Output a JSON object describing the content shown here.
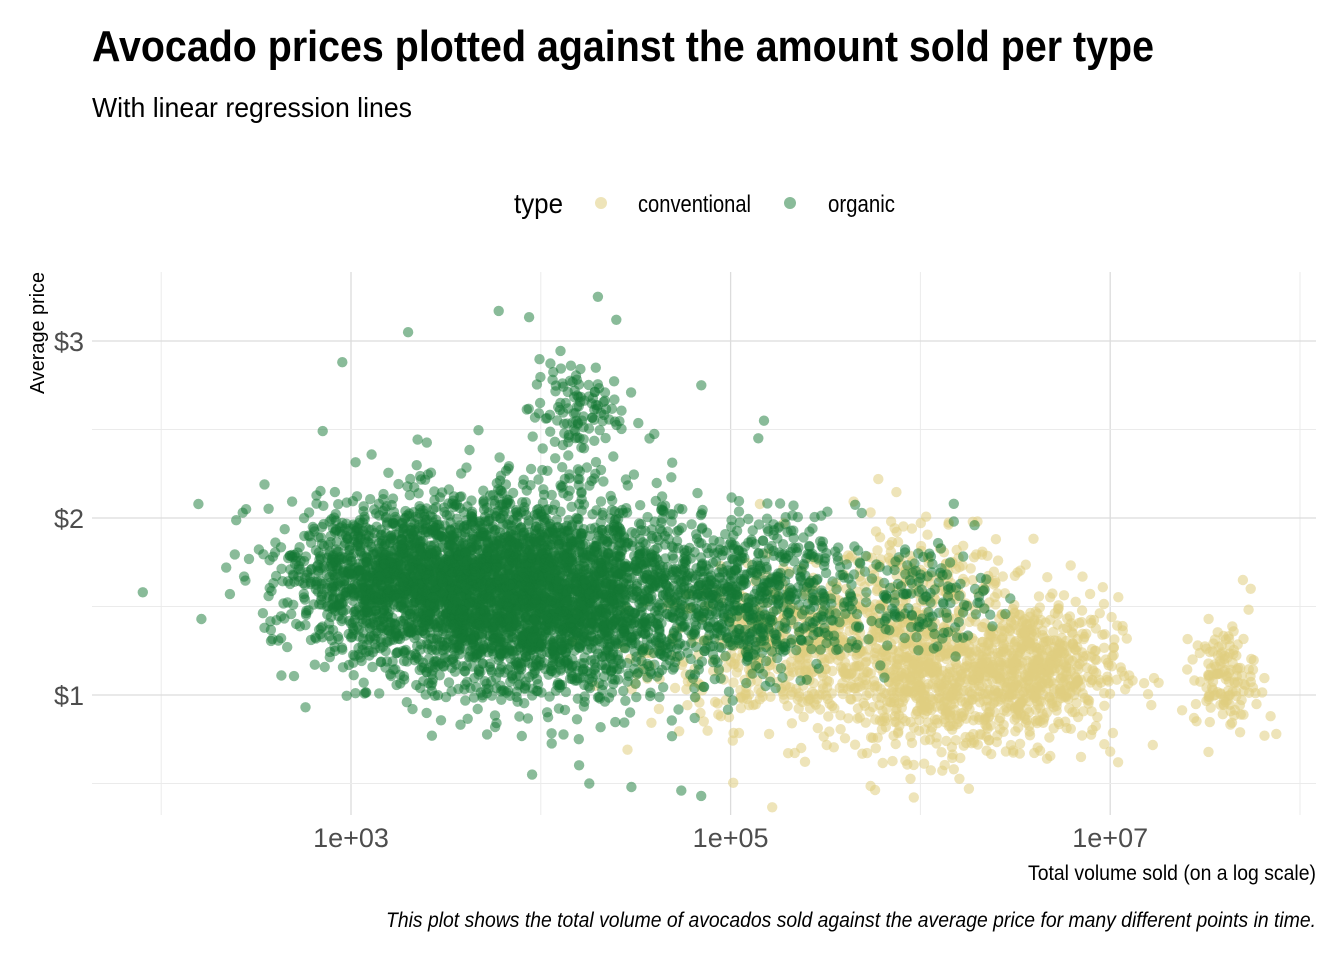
{
  "chart_data": {
    "type": "scatter",
    "title": "Avocado prices plotted against the amount sold per type",
    "subtitle": "With linear regression lines",
    "xlabel": "Total volume sold (on a log scale)",
    "ylabel": "Average price",
    "caption": "This plot shows the total volume of avocados sold against the average price for many different points in time.",
    "x_scale": "log10",
    "xlim": [
      50,
      100000000
    ],
    "ylim": [
      0.4,
      3.35
    ],
    "x_ticks": [
      {
        "value": 1000,
        "label": "1e+03"
      },
      {
        "value": 100000,
        "label": "1e+05"
      },
      {
        "value": 10000000,
        "label": "1e+07"
      }
    ],
    "x_minor_gridlines": [
      100,
      10000,
      1000000,
      100000000
    ],
    "y_ticks": [
      {
        "value": 1,
        "label": "$1"
      },
      {
        "value": 2,
        "label": "$2"
      },
      {
        "value": 3,
        "label": "$3"
      }
    ],
    "y_minor_gridlines": [
      0.5,
      1.5,
      2.5
    ],
    "grid": true,
    "legend": {
      "title": "type",
      "placement": "top",
      "entries": [
        "conventional",
        "organic"
      ]
    },
    "series": [
      {
        "name": "conventional",
        "color": "#e0cd80",
        "opacity": 0.55,
        "clusters": [
          {
            "center_x": 300000,
            "center_y": 1.25,
            "spread_logx": 0.45,
            "spread_y": 0.22,
            "count": 700
          },
          {
            "center_x": 1200000,
            "center_y": 1.05,
            "spread_logx": 0.25,
            "spread_y": 0.2,
            "count": 500
          },
          {
            "center_x": 4000000,
            "center_y": 1.15,
            "spread_logx": 0.22,
            "spread_y": 0.2,
            "count": 600
          },
          {
            "center_x": 1000000,
            "center_y": 1.7,
            "spread_logx": 0.25,
            "spread_y": 0.18,
            "count": 150
          },
          {
            "center_x": 40000000,
            "center_y": 1.1,
            "spread_logx": 0.08,
            "spread_y": 0.14,
            "count": 130
          }
        ],
        "points": [
          {
            "x": 50000000,
            "y": 1.65
          },
          {
            "x": 55000000,
            "y": 1.6
          },
          {
            "x": 33000000,
            "y": 1.43
          },
          {
            "x": 70000000,
            "y": 0.88
          },
          {
            "x": 75000000,
            "y": 0.78
          },
          {
            "x": 65000000,
            "y": 0.77
          },
          {
            "x": 33000000,
            "y": 0.99
          },
          {
            "x": 2000000,
            "y": 1.98
          },
          {
            "x": 2500000,
            "y": 1.88
          },
          {
            "x": 1800000,
            "y": 0.47
          },
          {
            "x": 11000000,
            "y": 0.62
          },
          {
            "x": 10000000,
            "y": 0.68
          },
          {
            "x": 600000,
            "y": 2.22
          },
          {
            "x": 1500000,
            "y": 0.58
          }
        ]
      },
      {
        "name": "organic",
        "color": "#137833",
        "opacity": 0.5,
        "clusters": [
          {
            "center_x": 3500,
            "center_y": 1.6,
            "spread_logx": 0.35,
            "spread_y": 0.25,
            "count": 2200
          },
          {
            "center_x": 15000,
            "center_y": 1.55,
            "spread_logx": 0.35,
            "spread_y": 0.28,
            "count": 1800
          },
          {
            "center_x": 120000,
            "center_y": 1.55,
            "spread_logx": 0.3,
            "spread_y": 0.22,
            "count": 700
          },
          {
            "center_x": 1100,
            "center_y": 1.7,
            "spread_logx": 0.25,
            "spread_y": 0.18,
            "count": 400
          },
          {
            "center_x": 1000000,
            "center_y": 1.55,
            "spread_logx": 0.18,
            "spread_y": 0.15,
            "count": 140
          },
          {
            "center_x": 15000,
            "center_y": 2.6,
            "spread_logx": 0.12,
            "spread_y": 0.15,
            "count": 120
          }
        ],
        "points": [
          {
            "x": 80,
            "y": 1.58
          },
          {
            "x": 220,
            "y": 1.72
          },
          {
            "x": 230,
            "y": 1.57
          },
          {
            "x": 280,
            "y": 2.05
          },
          {
            "x": 350,
            "y": 2.19
          },
          {
            "x": 430,
            "y": 1.11
          },
          {
            "x": 900,
            "y": 2.88
          },
          {
            "x": 2000,
            "y": 3.05
          },
          {
            "x": 6000,
            "y": 3.17
          },
          {
            "x": 20000,
            "y": 3.25
          },
          {
            "x": 25000,
            "y": 3.12
          },
          {
            "x": 70000,
            "y": 0.43
          },
          {
            "x": 55000,
            "y": 0.46
          },
          {
            "x": 18000,
            "y": 0.5
          },
          {
            "x": 9000,
            "y": 0.55
          },
          {
            "x": 30000,
            "y": 0.48
          },
          {
            "x": 150000,
            "y": 2.55
          },
          {
            "x": 140000,
            "y": 2.45
          },
          {
            "x": 1500000,
            "y": 2.08
          },
          {
            "x": 1500000,
            "y": 1.98
          },
          {
            "x": 2000000,
            "y": 1.52
          },
          {
            "x": 300000,
            "y": 1.45
          }
        ]
      }
    ]
  }
}
